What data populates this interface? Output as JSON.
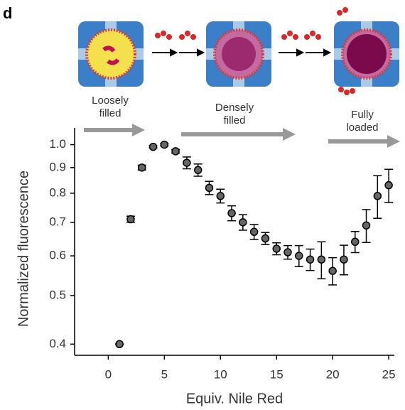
{
  "chart_data": {
    "type": "scatter",
    "panel_label": "d",
    "annotations": [
      "Loosely\nfilled",
      "Densely\nfilled",
      "Fully\nloaded"
    ],
    "xlabel": "Equiv. Nile Red",
    "ylabel": "Normalized fluorescence",
    "x": [
      1,
      2,
      3,
      4,
      5,
      6,
      7,
      8,
      9,
      10,
      11,
      12,
      13,
      14,
      15,
      16,
      17,
      18,
      19,
      20,
      21,
      22,
      23,
      24,
      25
    ],
    "values": [
      0.4,
      0.71,
      0.9,
      0.99,
      1.0,
      0.97,
      0.92,
      0.89,
      0.82,
      0.79,
      0.73,
      0.7,
      0.67,
      0.65,
      0.62,
      0.61,
      0.6,
      0.59,
      0.59,
      0.56,
      0.59,
      0.64,
      0.69,
      0.79,
      0.83
    ],
    "errors": [
      0,
      0.01,
      0.01,
      0.005,
      0.005,
      0.008,
      0.025,
      0.025,
      0.025,
      0.025,
      0.025,
      0.025,
      0.023,
      0.018,
      0.017,
      0.019,
      0.029,
      0.029,
      0.05,
      0.035,
      0.04,
      0.031,
      0.052,
      0.077,
      0.063
    ],
    "color": "#666666",
    "xlim": [
      -3,
      25.5
    ],
    "xticks": [
      0,
      5,
      10,
      15,
      20,
      25
    ],
    "ylim": [
      0.38,
      1.08
    ],
    "yscale": "log",
    "yticks": [
      {
        "value": 1,
        "label": "1.0"
      },
      0.9,
      0.8,
      0.7,
      0.6,
      0.5,
      0.4
    ]
  }
}
